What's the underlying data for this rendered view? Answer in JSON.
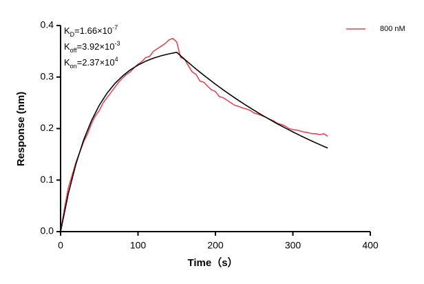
{
  "chart_data": {
    "type": "line",
    "xlabel": "Time（s）",
    "ylabel": "Response (nm)",
    "xlim": [
      0,
      400
    ],
    "xticks": [
      0,
      100,
      200,
      300,
      400
    ],
    "ylim": [
      0,
      0.4
    ],
    "yticks": [
      {
        "value": 0,
        "label": "0.0"
      },
      0.1,
      0.2,
      0.3,
      0.4
    ],
    "legend": "top-right",
    "annotations": [
      {
        "base": "K",
        "sub": "D",
        "text": "=1.66×10",
        "sup": "-7"
      },
      {
        "base": "K",
        "sub": "off",
        "text": "=3.92×10",
        "sup": "-3"
      },
      {
        "base": "K",
        "sub": "on",
        "text": "=2.37×10",
        "sup": "4"
      }
    ],
    "series": [
      {
        "name": "800 nM",
        "color": "#e0464e",
        "x": [
          0,
          5,
          10,
          15,
          20,
          25,
          30,
          35,
          40,
          45,
          50,
          55,
          60,
          65,
          70,
          75,
          80,
          85,
          90,
          95,
          100,
          105,
          110,
          115,
          120,
          125,
          130,
          135,
          140,
          145,
          150,
          155,
          160,
          165,
          170,
          175,
          180,
          185,
          190,
          195,
          200,
          205,
          210,
          215,
          220,
          225,
          230,
          235,
          240,
          245,
          250,
          255,
          260,
          265,
          270,
          275,
          280,
          285,
          290,
          295,
          300,
          305,
          310,
          315,
          320,
          325,
          330,
          335,
          340,
          345
        ],
        "values": [
          0.0,
          0.045,
          0.085,
          0.11,
          0.135,
          0.155,
          0.175,
          0.19,
          0.21,
          0.225,
          0.235,
          0.25,
          0.26,
          0.27,
          0.28,
          0.29,
          0.298,
          0.305,
          0.31,
          0.318,
          0.325,
          0.33,
          0.338,
          0.34,
          0.35,
          0.355,
          0.36,
          0.365,
          0.372,
          0.375,
          0.368,
          0.338,
          0.335,
          0.322,
          0.31,
          0.305,
          0.292,
          0.29,
          0.282,
          0.275,
          0.272,
          0.262,
          0.26,
          0.255,
          0.25,
          0.245,
          0.243,
          0.24,
          0.238,
          0.235,
          0.23,
          0.228,
          0.225,
          0.222,
          0.218,
          0.215,
          0.21,
          0.208,
          0.205,
          0.2,
          0.198,
          0.197,
          0.195,
          0.193,
          0.192,
          0.19,
          0.19,
          0.188,
          0.19,
          0.185
        ]
      },
      {
        "color": "#000000",
        "x": [
          0,
          10,
          20,
          30,
          40,
          50,
          60,
          70,
          80,
          90,
          100,
          110,
          120,
          130,
          140,
          150,
          160,
          170,
          180,
          190,
          200,
          210,
          220,
          230,
          240,
          250,
          260,
          270,
          280,
          290,
          300,
          310,
          320,
          330,
          340,
          345
        ],
        "values": [
          0,
          0.0736,
          0.1321,
          0.1787,
          0.2157,
          0.2452,
          0.2686,
          0.2872,
          0.302,
          0.3138,
          0.3232,
          0.3307,
          0.3366,
          0.3413,
          0.345,
          0.348,
          0.3346,
          0.3218,
          0.3094,
          0.2976,
          0.2861,
          0.2752,
          0.2646,
          0.2544,
          0.2447,
          0.2353,
          0.2262,
          0.2176,
          0.2092,
          0.2012,
          0.1935,
          0.186,
          0.1789,
          0.172,
          0.1654,
          0.1622
        ]
      }
    ]
  }
}
